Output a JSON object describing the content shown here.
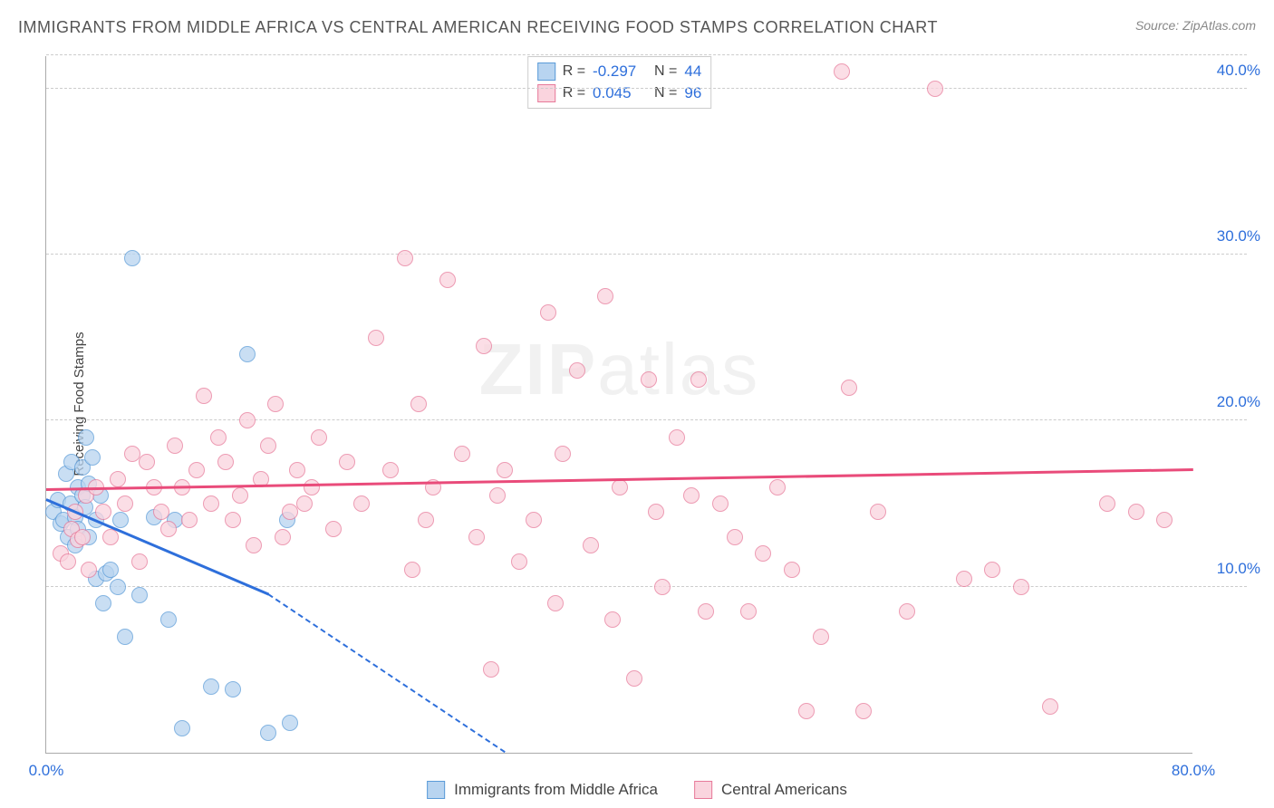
{
  "header": {
    "title": "IMMIGRANTS FROM MIDDLE AFRICA VS CENTRAL AMERICAN RECEIVING FOOD STAMPS CORRELATION CHART",
    "source_prefix": "Source: ",
    "source": "ZipAtlas.com"
  },
  "watermark": {
    "bold": "ZIP",
    "thin": "atlas"
  },
  "chart": {
    "type": "scatter",
    "xlim": [
      0,
      80
    ],
    "ylim": [
      0,
      42
    ],
    "x_ticks": [
      {
        "v": 0,
        "l": "0.0%"
      },
      {
        "v": 80,
        "l": "80.0%"
      }
    ],
    "y_ticks": [
      {
        "v": 10,
        "l": "10.0%"
      },
      {
        "v": 20,
        "l": "20.0%"
      },
      {
        "v": 30,
        "l": "30.0%"
      },
      {
        "v": 40,
        "l": "40.0%"
      }
    ],
    "y_gridlines": [
      10,
      20,
      30,
      40,
      42
    ],
    "y_axis_label": "Receiving Food Stamps",
    "tick_color": "#2e6fdb",
    "grid_color": "#cccccc",
    "background_color": "#ffffff",
    "point_radius": 9,
    "series": [
      {
        "name": "Immigrants from Middle Africa",
        "color_fill": "#b8d4f0",
        "color_stroke": "#5a9bd8",
        "trend_color": "#2e6fdb",
        "R": "-0.297",
        "N": "44",
        "trend": {
          "x1": 0,
          "y1": 15.2,
          "x2": 15.5,
          "y2": 9.5,
          "dash_to_x": 32,
          "dash_to_y": 0
        },
        "points": [
          [
            0.5,
            14.5
          ],
          [
            0.8,
            15.2
          ],
          [
            1.0,
            13.8
          ],
          [
            1.2,
            14.0
          ],
          [
            1.4,
            16.8
          ],
          [
            1.5,
            13.0
          ],
          [
            1.7,
            15.0
          ],
          [
            1.8,
            17.5
          ],
          [
            2.0,
            14.2
          ],
          [
            2.0,
            12.5
          ],
          [
            2.2,
            16.0
          ],
          [
            2.2,
            13.5
          ],
          [
            2.5,
            17.2
          ],
          [
            2.5,
            15.5
          ],
          [
            2.7,
            14.8
          ],
          [
            2.8,
            19.0
          ],
          [
            3.0,
            16.2
          ],
          [
            3.0,
            13.0
          ],
          [
            3.2,
            17.8
          ],
          [
            3.5,
            10.5
          ],
          [
            3.5,
            14.0
          ],
          [
            3.8,
            15.5
          ],
          [
            4.0,
            9.0
          ],
          [
            4.2,
            10.8
          ],
          [
            4.5,
            11.0
          ],
          [
            5.0,
            10.0
          ],
          [
            5.2,
            14.0
          ],
          [
            5.5,
            7.0
          ],
          [
            6.0,
            29.8
          ],
          [
            6.5,
            9.5
          ],
          [
            7.5,
            14.2
          ],
          [
            8.5,
            8.0
          ],
          [
            9.0,
            14.0
          ],
          [
            9.5,
            1.5
          ],
          [
            11.5,
            4.0
          ],
          [
            13.0,
            3.8
          ],
          [
            14.0,
            24.0
          ],
          [
            15.5,
            1.2
          ],
          [
            16.8,
            14.0
          ],
          [
            17.0,
            1.8
          ]
        ]
      },
      {
        "name": "Central Americans",
        "color_fill": "#fad4de",
        "color_stroke": "#e77a9a",
        "trend_color": "#e94b7a",
        "R": "0.045",
        "N": "96",
        "trend": {
          "x1": 0,
          "y1": 15.8,
          "x2": 80,
          "y2": 17.0
        },
        "points": [
          [
            1.0,
            12.0
          ],
          [
            1.5,
            11.5
          ],
          [
            1.8,
            13.5
          ],
          [
            2.0,
            14.5
          ],
          [
            2.2,
            12.8
          ],
          [
            2.5,
            13.0
          ],
          [
            2.8,
            15.5
          ],
          [
            3.0,
            11.0
          ],
          [
            3.5,
            16.0
          ],
          [
            4.0,
            14.5
          ],
          [
            4.5,
            13.0
          ],
          [
            5.0,
            16.5
          ],
          [
            5.5,
            15.0
          ],
          [
            6.0,
            18.0
          ],
          [
            6.5,
            11.5
          ],
          [
            7.0,
            17.5
          ],
          [
            7.5,
            16.0
          ],
          [
            8.0,
            14.5
          ],
          [
            8.5,
            13.5
          ],
          [
            9.0,
            18.5
          ],
          [
            9.5,
            16.0
          ],
          [
            10.0,
            14.0
          ],
          [
            10.5,
            17.0
          ],
          [
            11.0,
            21.5
          ],
          [
            11.5,
            15.0
          ],
          [
            12.0,
            19.0
          ],
          [
            12.5,
            17.5
          ],
          [
            13.0,
            14.0
          ],
          [
            13.5,
            15.5
          ],
          [
            14.0,
            20.0
          ],
          [
            14.5,
            12.5
          ],
          [
            15.0,
            16.5
          ],
          [
            15.5,
            18.5
          ],
          [
            16.0,
            21.0
          ],
          [
            16.5,
            13.0
          ],
          [
            17.0,
            14.5
          ],
          [
            17.5,
            17.0
          ],
          [
            18.0,
            15.0
          ],
          [
            18.5,
            16.0
          ],
          [
            19.0,
            19.0
          ],
          [
            20.0,
            13.5
          ],
          [
            21.0,
            17.5
          ],
          [
            22.0,
            15.0
          ],
          [
            23.0,
            25.0
          ],
          [
            24.0,
            17.0
          ],
          [
            25.0,
            29.8
          ],
          [
            25.5,
            11.0
          ],
          [
            26.0,
            21.0
          ],
          [
            26.5,
            14.0
          ],
          [
            27.0,
            16.0
          ],
          [
            28.0,
            28.5
          ],
          [
            29.0,
            18.0
          ],
          [
            30.0,
            13.0
          ],
          [
            30.5,
            24.5
          ],
          [
            31.0,
            5.0
          ],
          [
            31.5,
            15.5
          ],
          [
            32.0,
            17.0
          ],
          [
            33.0,
            11.5
          ],
          [
            34.0,
            14.0
          ],
          [
            35.0,
            26.5
          ],
          [
            35.5,
            9.0
          ],
          [
            36.0,
            18.0
          ],
          [
            37.0,
            23.0
          ],
          [
            38.0,
            12.5
          ],
          [
            39.0,
            27.5
          ],
          [
            39.5,
            8.0
          ],
          [
            40.0,
            16.0
          ],
          [
            41.0,
            4.5
          ],
          [
            42.0,
            22.5
          ],
          [
            42.5,
            14.5
          ],
          [
            43.0,
            10.0
          ],
          [
            44.0,
            19.0
          ],
          [
            45.0,
            15.5
          ],
          [
            45.5,
            22.5
          ],
          [
            46.0,
            8.5
          ],
          [
            47.0,
            15.0
          ],
          [
            48.0,
            13.0
          ],
          [
            49.0,
            8.5
          ],
          [
            50.0,
            12.0
          ],
          [
            51.0,
            16.0
          ],
          [
            52.0,
            11.0
          ],
          [
            53.0,
            2.5
          ],
          [
            54.0,
            7.0
          ],
          [
            55.5,
            41.0
          ],
          [
            56.0,
            22.0
          ],
          [
            57.0,
            2.5
          ],
          [
            58.0,
            14.5
          ],
          [
            60.0,
            8.5
          ],
          [
            62.0,
            40.0
          ],
          [
            64.0,
            10.5
          ],
          [
            66.0,
            11.0
          ],
          [
            68.0,
            10.0
          ],
          [
            70.0,
            2.8
          ],
          [
            74.0,
            15.0
          ],
          [
            76.0,
            14.5
          ],
          [
            78.0,
            14.0
          ]
        ]
      }
    ],
    "legend_top": {
      "R_label": "R =",
      "N_label": "N ="
    },
    "legend_bottom": [
      {
        "label": "Immigrants from Middle Africa",
        "fill": "#b8d4f0",
        "stroke": "#5a9bd8"
      },
      {
        "label": "Central Americans",
        "fill": "#fad4de",
        "stroke": "#e77a9a"
      }
    ]
  }
}
